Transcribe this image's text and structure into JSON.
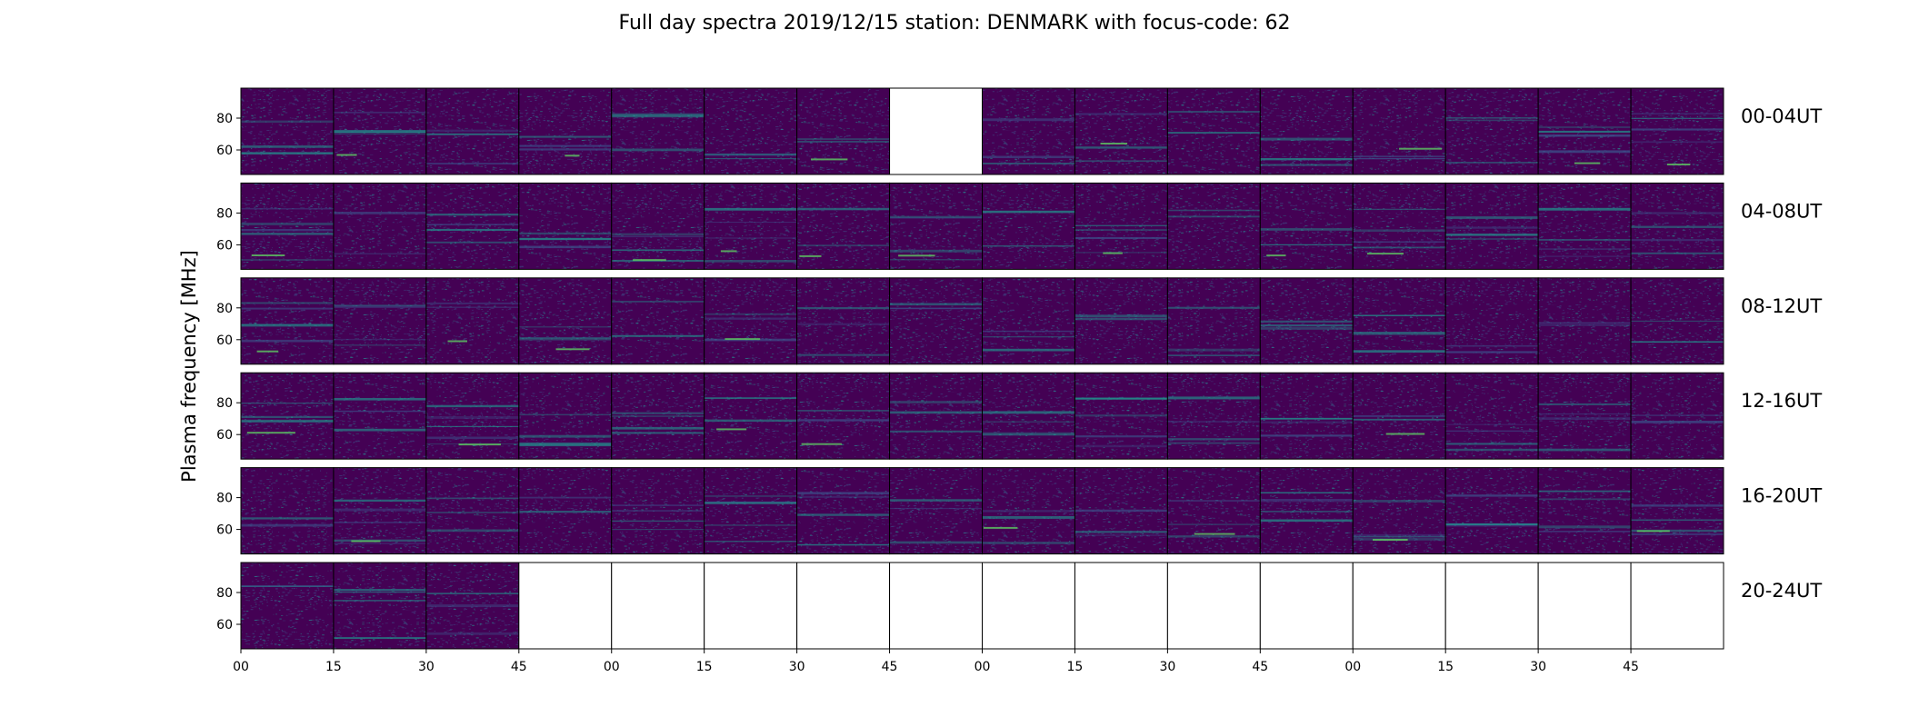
{
  "chart_data": {
    "type": "heatmap",
    "title": "Full day spectra 2019/12/15 station: DENMARK with focus-code: 62",
    "ylabel": "Plasma frequency [MHz]",
    "xlabel": "",
    "y_ticks": [
      "80",
      "60"
    ],
    "x_tick_labels": [
      "00",
      "15",
      "30",
      "45",
      "00",
      "15",
      "30",
      "45",
      "00",
      "15",
      "30",
      "45",
      "00",
      "15",
      "30",
      "45"
    ],
    "panels_per_row": 16,
    "colormap": "viridis",
    "rows": [
      {
        "label": "00-04UT",
        "present": [
          1,
          1,
          1,
          1,
          1,
          1,
          1,
          0,
          1,
          1,
          1,
          1,
          1,
          1,
          1,
          1
        ]
      },
      {
        "label": "04-08UT",
        "present": [
          1,
          1,
          1,
          1,
          1,
          1,
          1,
          1,
          1,
          1,
          1,
          1,
          1,
          1,
          1,
          1
        ]
      },
      {
        "label": "08-12UT",
        "present": [
          1,
          1,
          1,
          1,
          1,
          1,
          1,
          1,
          1,
          1,
          1,
          1,
          1,
          1,
          1,
          1
        ]
      },
      {
        "label": "12-16UT",
        "present": [
          1,
          1,
          1,
          1,
          1,
          1,
          1,
          1,
          1,
          1,
          1,
          1,
          1,
          1,
          1,
          1
        ]
      },
      {
        "label": "16-20UT",
        "present": [
          1,
          1,
          1,
          1,
          1,
          1,
          1,
          1,
          1,
          1,
          1,
          1,
          1,
          1,
          1,
          1
        ]
      },
      {
        "label": "20-24UT",
        "present": [
          1,
          1,
          1,
          0,
          0,
          0,
          0,
          0,
          0,
          0,
          0,
          0,
          0,
          0,
          0,
          0
        ]
      }
    ],
    "colors": {
      "background": "#440154",
      "noise": "#3b528b",
      "signal": "#21918c",
      "bright": "#5ec962",
      "peak": "#fde725"
    }
  }
}
